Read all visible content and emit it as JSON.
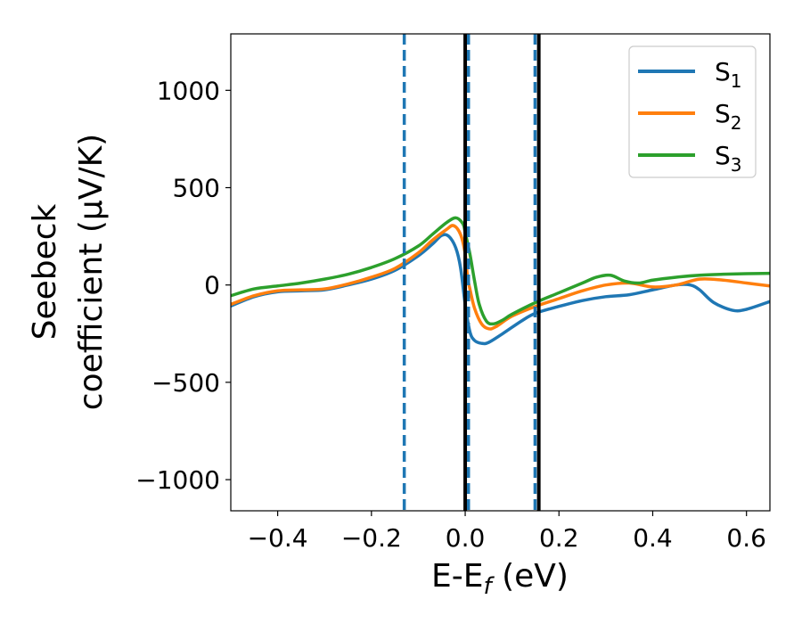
{
  "chart_data": {
    "type": "line",
    "xlabel": {
      "main": "E-E",
      "sub": "f",
      "unit": " (eV)"
    },
    "ylabel": {
      "line1": "Seebeck",
      "line2": "coefficient  (μV/K)"
    },
    "xlim": [
      -0.5,
      0.65
    ],
    "ylim": [
      -1160,
      1290
    ],
    "x_ticks": [
      {
        "value": -0.4,
        "label": "−0.4"
      },
      {
        "value": -0.2,
        "label": "−0.2"
      },
      {
        "value": 0.0,
        "label": "0.0"
      },
      {
        "value": 0.2,
        "label": "0.2"
      },
      {
        "value": 0.4,
        "label": "0.4"
      },
      {
        "value": 0.6,
        "label": "0.6"
      }
    ],
    "y_ticks": [
      {
        "value": -1000,
        "label": "−1000"
      },
      {
        "value": -500,
        "label": "−500"
      },
      {
        "value": 0,
        "label": "0"
      },
      {
        "value": 500,
        "label": "500"
      },
      {
        "value": 1000,
        "label": "1000"
      }
    ],
    "legend": {
      "position": "top-right"
    },
    "series": [
      {
        "name": "S",
        "sub": "1",
        "color": "#1f77b4",
        "points": [
          [
            -0.5,
            -108
          ],
          [
            -0.45,
            -60
          ],
          [
            -0.4,
            -35
          ],
          [
            -0.35,
            -30
          ],
          [
            -0.3,
            -25
          ],
          [
            -0.25,
            0
          ],
          [
            -0.2,
            30
          ],
          [
            -0.15,
            75
          ],
          [
            -0.1,
            150
          ],
          [
            -0.07,
            210
          ],
          [
            -0.05,
            255
          ],
          [
            -0.035,
            250
          ],
          [
            -0.02,
            190
          ],
          [
            -0.01,
            90
          ],
          [
            0.0,
            -100
          ],
          [
            0.01,
            -240
          ],
          [
            0.02,
            -285
          ],
          [
            0.035,
            -300
          ],
          [
            0.05,
            -295
          ],
          [
            0.08,
            -250
          ],
          [
            0.12,
            -185
          ],
          [
            0.15,
            -145
          ],
          [
            0.2,
            -110
          ],
          [
            0.25,
            -80
          ],
          [
            0.3,
            -60
          ],
          [
            0.35,
            -50
          ],
          [
            0.4,
            -25
          ],
          [
            0.45,
            0
          ],
          [
            0.48,
            0
          ],
          [
            0.5,
            -25
          ],
          [
            0.53,
            -90
          ],
          [
            0.57,
            -130
          ],
          [
            0.6,
            -125
          ],
          [
            0.65,
            -85
          ]
        ]
      },
      {
        "name": "S",
        "sub": "2",
        "color": "#ff7f0e",
        "points": [
          [
            -0.5,
            -100
          ],
          [
            -0.45,
            -55
          ],
          [
            -0.4,
            -30
          ],
          [
            -0.35,
            -25
          ],
          [
            -0.3,
            -20
          ],
          [
            -0.25,
            5
          ],
          [
            -0.2,
            40
          ],
          [
            -0.15,
            85
          ],
          [
            -0.1,
            165
          ],
          [
            -0.07,
            230
          ],
          [
            -0.04,
            285
          ],
          [
            -0.025,
            305
          ],
          [
            -0.01,
            260
          ],
          [
            0.0,
            160
          ],
          [
            0.005,
            40
          ],
          [
            0.01,
            -20
          ],
          [
            0.02,
            -120
          ],
          [
            0.035,
            -200
          ],
          [
            0.05,
            -225
          ],
          [
            0.065,
            -215
          ],
          [
            0.1,
            -160
          ],
          [
            0.15,
            -110
          ],
          [
            0.2,
            -70
          ],
          [
            0.25,
            -30
          ],
          [
            0.3,
            0
          ],
          [
            0.35,
            10
          ],
          [
            0.4,
            -10
          ],
          [
            0.45,
            0
          ],
          [
            0.5,
            30
          ],
          [
            0.55,
            25
          ],
          [
            0.6,
            10
          ],
          [
            0.65,
            -5
          ]
        ]
      },
      {
        "name": "S",
        "sub": "3",
        "color": "#2ca02c",
        "points": [
          [
            -0.5,
            -55
          ],
          [
            -0.45,
            -20
          ],
          [
            -0.4,
            -5
          ],
          [
            -0.35,
            10
          ],
          [
            -0.3,
            30
          ],
          [
            -0.25,
            55
          ],
          [
            -0.2,
            90
          ],
          [
            -0.15,
            135
          ],
          [
            -0.1,
            200
          ],
          [
            -0.07,
            260
          ],
          [
            -0.04,
            320
          ],
          [
            -0.02,
            345
          ],
          [
            -0.005,
            315
          ],
          [
            0.0,
            270
          ],
          [
            0.01,
            160
          ],
          [
            0.02,
            20
          ],
          [
            0.03,
            -100
          ],
          [
            0.045,
            -185
          ],
          [
            0.06,
            -200
          ],
          [
            0.08,
            -180
          ],
          [
            0.1,
            -150
          ],
          [
            0.15,
            -90
          ],
          [
            0.2,
            -40
          ],
          [
            0.25,
            10
          ],
          [
            0.28,
            40
          ],
          [
            0.31,
            50
          ],
          [
            0.34,
            20
          ],
          [
            0.37,
            10
          ],
          [
            0.4,
            25
          ],
          [
            0.45,
            40
          ],
          [
            0.5,
            50
          ],
          [
            0.55,
            55
          ],
          [
            0.6,
            58
          ],
          [
            0.65,
            60
          ]
        ]
      }
    ],
    "vlines": [
      {
        "x": -0.13,
        "style": "dashed",
        "color": "#1f77b4"
      },
      {
        "x": 0.0,
        "style": "solid",
        "color": "#000000"
      },
      {
        "x": 0.007,
        "style": "dashed",
        "color": "#1f77b4"
      },
      {
        "x": 0.149,
        "style": "dashed",
        "color": "#1f77b4"
      },
      {
        "x": 0.157,
        "style": "solid",
        "color": "#000000"
      }
    ]
  }
}
